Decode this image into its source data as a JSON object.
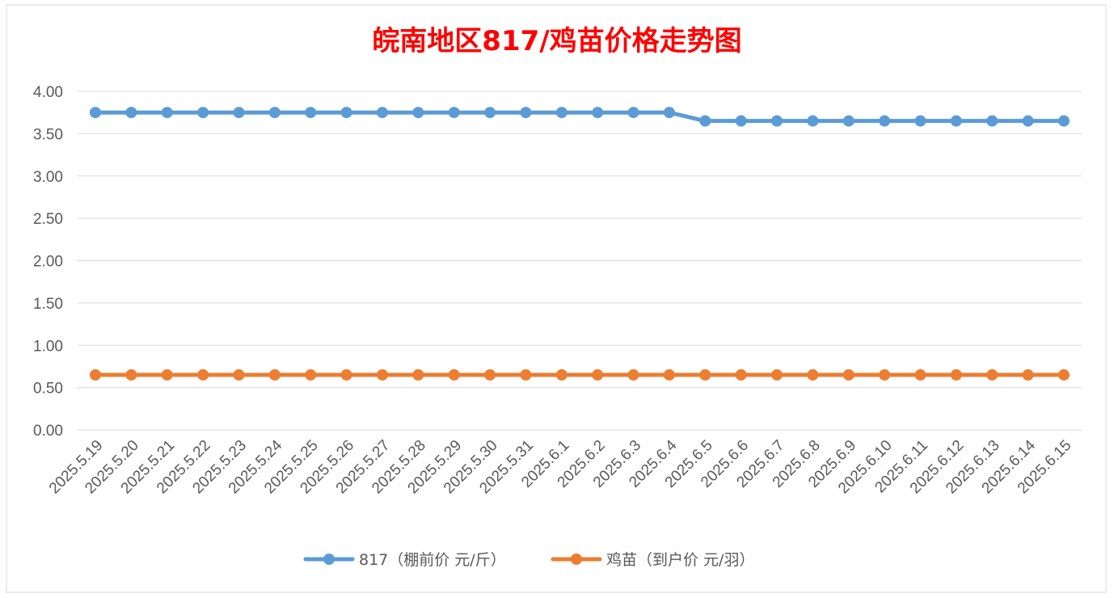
{
  "chart_data": {
    "type": "line",
    "title": "皖南地区817/鸡苗价格走势图",
    "xlabel": "",
    "ylabel": "",
    "ylim": [
      0,
      4
    ],
    "y_ticks": [
      "0.00",
      "0.50",
      "1.00",
      "1.50",
      "2.00",
      "2.50",
      "3.00",
      "3.50",
      "4.00"
    ],
    "grid": true,
    "legend_position": "bottom",
    "categories": [
      "2025.5.19",
      "2025.5.20",
      "2025.5.21",
      "2025.5.22",
      "2025.5.23",
      "2025.5.24",
      "2025.5.25",
      "2025.5.26",
      "2025.5.27",
      "2025.5.28",
      "2025.5.29",
      "2025.5.30",
      "2025.5.31",
      "2025.6.1",
      "2025.6.2",
      "2025.6.3",
      "2025.6.4",
      "2025.6.5",
      "2025.6.6",
      "2025.6.7",
      "2025.6.8",
      "2025.6.9",
      "2025.6.10",
      "2025.6.11",
      "2025.6.12",
      "2025.6.13",
      "2025.6.14",
      "2025.6.15"
    ],
    "series": [
      {
        "name": "817（棚前价 元/斤）",
        "color": "#5b9bd5",
        "values": [
          3.75,
          3.75,
          3.75,
          3.75,
          3.75,
          3.75,
          3.75,
          3.75,
          3.75,
          3.75,
          3.75,
          3.75,
          3.75,
          3.75,
          3.75,
          3.75,
          3.75,
          3.65,
          3.65,
          3.65,
          3.65,
          3.65,
          3.65,
          3.65,
          3.65,
          3.65,
          3.65,
          3.65
        ]
      },
      {
        "name": "鸡苗（到户价 元/羽）",
        "color": "#ed7d31",
        "values": [
          0.65,
          0.65,
          0.65,
          0.65,
          0.65,
          0.65,
          0.65,
          0.65,
          0.65,
          0.65,
          0.65,
          0.65,
          0.65,
          0.65,
          0.65,
          0.65,
          0.65,
          0.65,
          0.65,
          0.65,
          0.65,
          0.65,
          0.65,
          0.65,
          0.65,
          0.65,
          0.65,
          0.65
        ]
      }
    ]
  }
}
